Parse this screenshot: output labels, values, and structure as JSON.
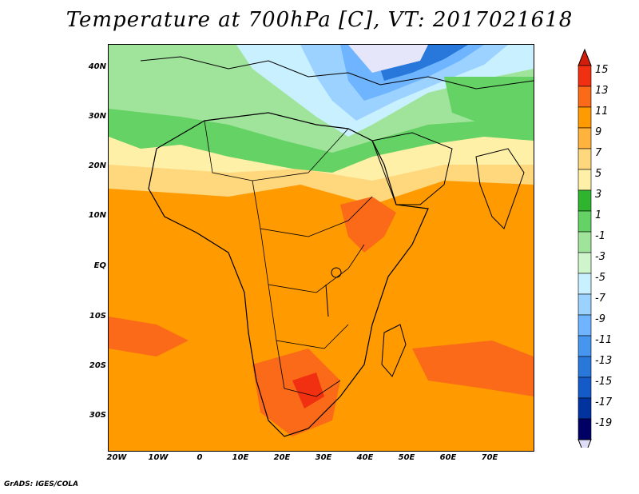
{
  "title": "Temperature at 700hPa [C], VT: 2017021618",
  "footer": "GrADS: IGES/COLA",
  "map": {
    "lat_labels": [
      "40N",
      "30N",
      "20N",
      "10N",
      "EQ",
      "10S",
      "20S",
      "30S"
    ],
    "lon_labels": [
      "20W",
      "10W",
      "0",
      "10E",
      "20E",
      "30E",
      "40E",
      "50E",
      "60E",
      "70E"
    ]
  },
  "colorbar": {
    "labels": [
      "15",
      "13",
      "11",
      "9",
      "7",
      "5",
      "3",
      "1",
      "-1",
      "-3",
      "-5",
      "-7",
      "-9",
      "-11",
      "-13",
      "-15",
      "-17",
      "-19"
    ],
    "colors": [
      "#f03010",
      "#fa6a18",
      "#ff9a00",
      "#ffb23c",
      "#ffd77d",
      "#fff0a8",
      "#2eb42e",
      "#64d264",
      "#a0e49b",
      "#d0f5cd",
      "#c8f0ff",
      "#9cd2ff",
      "#6eb4ff",
      "#4696f0",
      "#2878dc",
      "#145ac8",
      "#0032a0",
      "#000064"
    ],
    "top_arrow_color": "#d21e0a",
    "bottom_arrow_color": "#ddddf5"
  }
}
